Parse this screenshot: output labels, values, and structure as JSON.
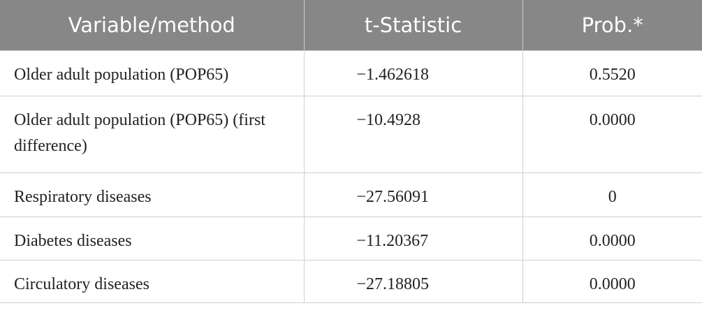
{
  "table": {
    "header": [
      "Variable/method",
      "t-Statistic",
      "Prob.*"
    ],
    "rows": [
      [
        "Older adult population (POP65)",
        "−1.462618",
        "0.5520"
      ],
      [
        "Older adult population (POP65) (first difference)",
        "−10.4928",
        "0.0000"
      ],
      [
        "Respiratory diseases",
        "−27.56091",
        "0"
      ],
      [
        "Diabetes diseases",
        "−11.20367",
        "0.0000"
      ],
      [
        "Circulatory diseases",
        "−27.18805",
        "0.0000"
      ]
    ]
  }
}
